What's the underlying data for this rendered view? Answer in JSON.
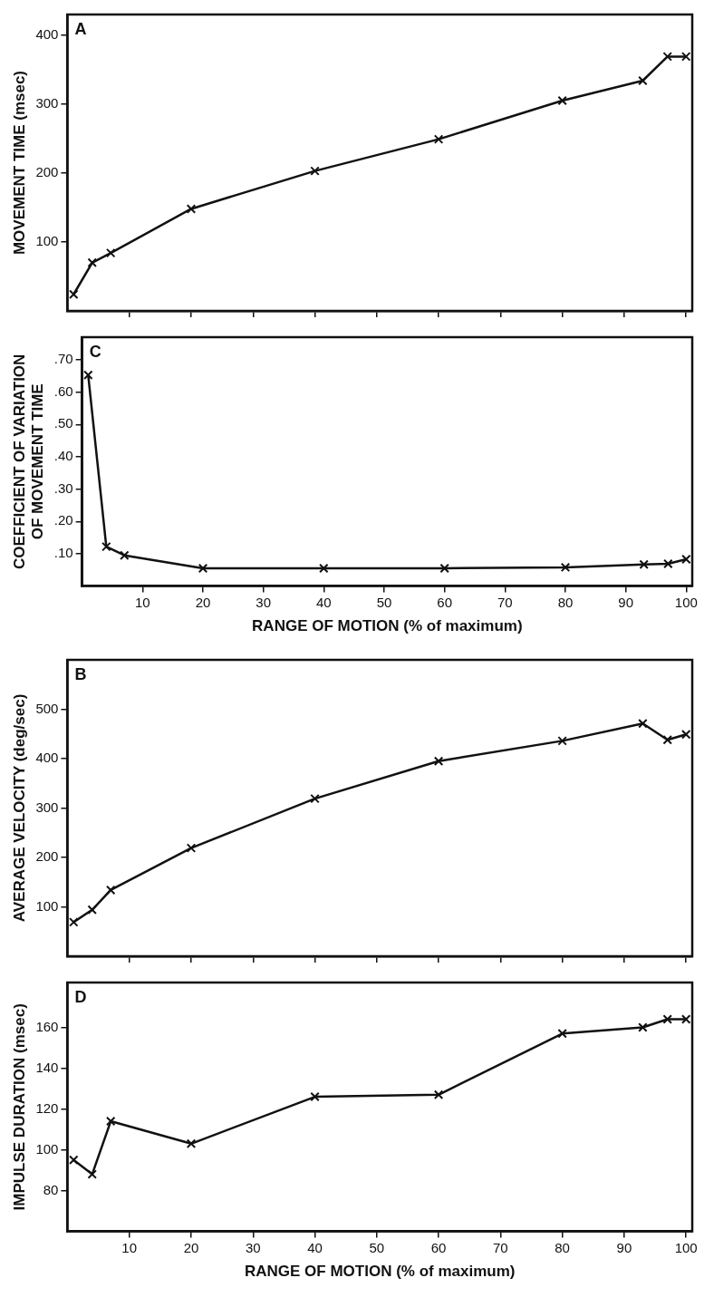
{
  "chart_data": [
    {
      "type": "line",
      "annotations": [
        "A"
      ],
      "ylabel": "MOVEMENT TIME (msec)",
      "x": [
        1,
        4,
        7,
        20,
        40,
        60,
        80,
        93,
        97,
        100
      ],
      "series": [
        {
          "color": "#111111",
          "values": [
            24,
            70,
            84,
            148,
            203,
            249,
            305,
            334,
            369,
            369
          ]
        }
      ],
      "xlim": [
        0,
        101
      ],
      "xticks": [
        {
          "value": 10,
          "label": null
        },
        {
          "value": 20,
          "label": null
        },
        {
          "value": 30,
          "label": null
        },
        {
          "value": 40,
          "label": null
        },
        {
          "value": 50,
          "label": null
        },
        {
          "value": 60,
          "label": null
        },
        {
          "value": 70,
          "label": null
        },
        {
          "value": 80,
          "label": null
        },
        {
          "value": 90,
          "label": null
        },
        {
          "value": 100,
          "label": null
        }
      ],
      "ylim": [
        0,
        430
      ],
      "yticks": [
        100,
        200,
        300,
        400
      ],
      "marker": "cross",
      "line_style": "solid",
      "grid": false,
      "legend": false,
      "tick_labels": "y"
    },
    {
      "type": "line",
      "annotations": [
        "C"
      ],
      "ylabel": "COEFFICIENT OF VARIATION OF MOVEMENT TIME",
      "xlabel": "RANGE OF MOTION (% of maximum)",
      "x": [
        1,
        4,
        7,
        20,
        40,
        60,
        80,
        93,
        97,
        100
      ],
      "series": [
        {
          "color": "#111111",
          "values": [
            0.653,
            0.122,
            0.095,
            0.055,
            0.055,
            0.055,
            0.058,
            0.067,
            0.069,
            0.083
          ]
        }
      ],
      "xlim": [
        0,
        101
      ],
      "xticks": [
        10,
        20,
        30,
        40,
        50,
        60,
        70,
        80,
        90,
        100
      ],
      "ylim": [
        0,
        0.77
      ],
      "yticks": [
        {
          "value": 0.1,
          "label": ".10"
        },
        {
          "value": 0.2,
          "label": ".20"
        },
        {
          "value": 0.3,
          "label": ".30"
        },
        {
          "value": 0.4,
          "label": ".40"
        },
        {
          "value": 0.5,
          "label": ".50"
        },
        {
          "value": 0.6,
          "label": ".60"
        },
        {
          "value": 0.7,
          "label": ".70"
        }
      ],
      "marker": "cross",
      "line_style": "solid",
      "grid": false,
      "legend": false
    },
    {
      "type": "line",
      "annotations": [
        "B"
      ],
      "ylabel": "AVERAGE VELOCITY (deg/sec)",
      "x": [
        1,
        4,
        7,
        20,
        40,
        60,
        80,
        93,
        97,
        100
      ],
      "series": [
        {
          "color": "#111111",
          "values": [
            69,
            94,
            134,
            219,
            319,
            395,
            436,
            471,
            438,
            449
          ]
        }
      ],
      "xlim": [
        0,
        101
      ],
      "xticks": [
        {
          "value": 10,
          "label": null
        },
        {
          "value": 20,
          "label": null
        },
        {
          "value": 30,
          "label": null
        },
        {
          "value": 40,
          "label": null
        },
        {
          "value": 50,
          "label": null
        },
        {
          "value": 60,
          "label": null
        },
        {
          "value": 70,
          "label": null
        },
        {
          "value": 80,
          "label": null
        },
        {
          "value": 90,
          "label": null
        },
        {
          "value": 100,
          "label": null
        }
      ],
      "ylim": [
        0,
        600
      ],
      "yticks": [
        100,
        200,
        300,
        400,
        500
      ],
      "marker": "cross",
      "line_style": "solid",
      "grid": false,
      "legend": false,
      "tick_labels": "y"
    },
    {
      "type": "line",
      "annotations": [
        "D"
      ],
      "ylabel": "IMPULSE DURATION (msec)",
      "xlabel": "RANGE OF MOTION (% of maximum)",
      "x": [
        1,
        4,
        7,
        20,
        40,
        60,
        80,
        93,
        97,
        100
      ],
      "series": [
        {
          "color": "#111111",
          "values": [
            95,
            88,
            114,
            103,
            126,
            127,
            157,
            160,
            164,
            164
          ]
        }
      ],
      "xlim": [
        0,
        101
      ],
      "xticks": [
        10,
        20,
        30,
        40,
        50,
        60,
        70,
        80,
        90,
        100
      ],
      "ylim": [
        60,
        182
      ],
      "yticks": [
        80,
        100,
        120,
        140,
        160
      ],
      "marker": "cross",
      "line_style": "solid",
      "grid": false,
      "legend": false
    }
  ]
}
